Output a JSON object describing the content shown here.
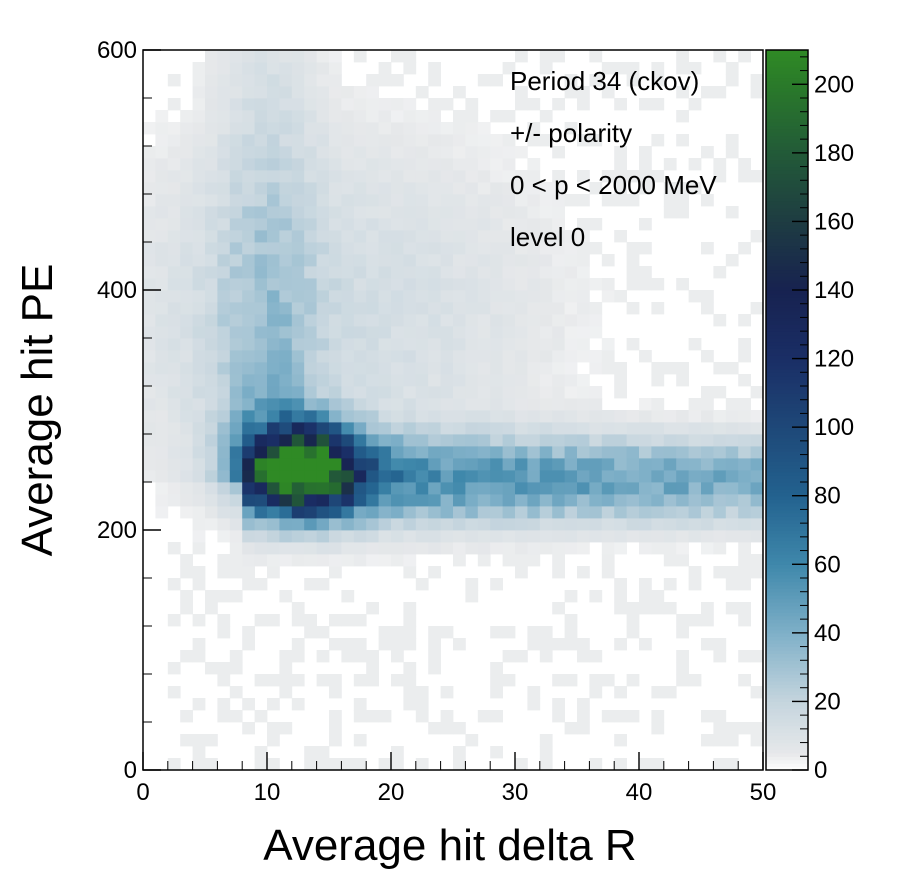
{
  "chart_data": {
    "type": "heatmap",
    "title": "",
    "xlabel": "Average hit delta R",
    "ylabel": "Average hit PE",
    "xlim": [
      0,
      50
    ],
    "ylim": [
      0,
      600
    ],
    "x_ticks": [
      "0",
      "10",
      "20",
      "30",
      "40",
      "50"
    ],
    "y_ticks": [
      "0",
      "200",
      "400",
      "600"
    ],
    "z_range": [
      0,
      210
    ],
    "z_ticks": [
      "0",
      "20",
      "40",
      "60",
      "80",
      "100",
      "120",
      "140",
      "160",
      "180",
      "200"
    ],
    "annotations": [
      "Period 34 (ckov)",
      "+/- polarity",
      "0 < p < 2000 MeV",
      "level 0"
    ],
    "bins": {
      "x_bins": 50,
      "y_bins": 60,
      "x_range": [
        0,
        50
      ],
      "y_range": [
        0,
        600
      ]
    },
    "peak": {
      "x": 13,
      "y": 255,
      "value": 210
    },
    "colormap_stops": [
      {
        "value": 0,
        "color": "#ffffff"
      },
      {
        "value": 5,
        "color": "#e6e8ea"
      },
      {
        "value": 20,
        "color": "#c5d5de"
      },
      {
        "value": 40,
        "color": "#7fb0c8"
      },
      {
        "value": 60,
        "color": "#3f88ab"
      },
      {
        "value": 80,
        "color": "#23628f"
      },
      {
        "value": 100,
        "color": "#1e4878"
      },
      {
        "value": 120,
        "color": "#1a2e66"
      },
      {
        "value": 140,
        "color": "#172250"
      },
      {
        "value": 160,
        "color": "#1e3c42"
      },
      {
        "value": 180,
        "color": "#225a38"
      },
      {
        "value": 200,
        "color": "#2a7a2a"
      },
      {
        "value": 210,
        "color": "#2f8a25"
      }
    ]
  }
}
